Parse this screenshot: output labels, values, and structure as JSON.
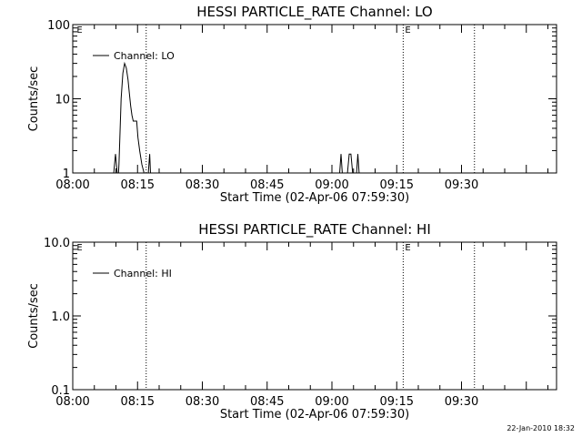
{
  "stamp": "22-Jan-2010 18:32",
  "chart_data": [
    {
      "type": "line",
      "title": "HESSI PARTICLE_RATE Channel: LO",
      "xlabel": "Start Time (02-Apr-06 07:59:30)",
      "ylabel": "Counts/sec",
      "y_scale": "log",
      "ylim": [
        1,
        100
      ],
      "xlim": [
        0,
        112
      ],
      "y_ticks": [
        {
          "value": 1,
          "label": "1"
        },
        {
          "value": 10,
          "label": "10"
        },
        {
          "value": 100,
          "label": "100"
        }
      ],
      "x_ticks": [
        {
          "value": 0,
          "label": "08:00"
        },
        {
          "value": 15,
          "label": "08:15"
        },
        {
          "value": 30,
          "label": "08:30"
        },
        {
          "value": 45,
          "label": "08:45"
        },
        {
          "value": 60,
          "label": "09:00"
        },
        {
          "value": 75,
          "label": "09:15"
        },
        {
          "value": 90,
          "label": "09:30"
        }
      ],
      "legend": {
        "position": "top-left",
        "entries": [
          "Channel: LO"
        ]
      },
      "markers": [
        {
          "x": 0.5,
          "label": "E"
        },
        {
          "x": 17,
          "label": ""
        },
        {
          "x": 76.5,
          "label": "E"
        },
        {
          "x": 93,
          "label": ""
        }
      ],
      "series": [
        {
          "name": "Channel: LO",
          "x": [
            9.5,
            9.9,
            10.3,
            10.6,
            10.7,
            10.9,
            11.2,
            11.6,
            12.0,
            12.4,
            12.8,
            13.1,
            13.4,
            13.7,
            14.0,
            14.3,
            14.8,
            15.1,
            15.5,
            16.0,
            16.5
          ],
          "y": [
            1,
            1.8,
            1,
            1,
            1.3,
            3,
            10,
            22,
            30,
            26,
            18,
            12,
            8,
            6,
            5,
            5,
            5,
            3,
            2,
            1.3,
            1
          ]
        },
        {
          "name": "",
          "x": [
            17.5,
            17.8,
            18.0
          ],
          "y": [
            1,
            1.8,
            1
          ]
        },
        {
          "name": "",
          "x": [
            61.8,
            62.1,
            62.4
          ],
          "y": [
            1,
            1.8,
            1
          ]
        },
        {
          "name": "",
          "x": [
            63.6,
            64.0,
            64.4,
            64.8
          ],
          "y": [
            1,
            1.8,
            1.8,
            1
          ]
        },
        {
          "name": "",
          "x": [
            65.7,
            66.0,
            66.3
          ],
          "y": [
            1,
            1.8,
            1
          ]
        }
      ]
    },
    {
      "type": "line",
      "title": "HESSI PARTICLE_RATE Channel: HI",
      "xlabel": "Start Time (02-Apr-06 07:59:30)",
      "ylabel": "Counts/sec",
      "y_scale": "log",
      "ylim": [
        0.1,
        10
      ],
      "xlim": [
        0,
        112
      ],
      "y_ticks": [
        {
          "value": 0.1,
          "label": "0.1"
        },
        {
          "value": 1,
          "label": "1.0"
        },
        {
          "value": 10,
          "label": "10.0"
        }
      ],
      "x_ticks": [
        {
          "value": 0,
          "label": "08:00"
        },
        {
          "value": 15,
          "label": "08:15"
        },
        {
          "value": 30,
          "label": "08:30"
        },
        {
          "value": 45,
          "label": "08:45"
        },
        {
          "value": 60,
          "label": "09:00"
        },
        {
          "value": 75,
          "label": "09:15"
        },
        {
          "value": 90,
          "label": "09:30"
        }
      ],
      "legend": {
        "position": "top-left",
        "entries": [
          "Channel: HI"
        ]
      },
      "markers": [
        {
          "x": 0.5,
          "label": "E"
        },
        {
          "x": 17,
          "label": ""
        },
        {
          "x": 76.5,
          "label": "E"
        },
        {
          "x": 93,
          "label": ""
        }
      ],
      "series": []
    }
  ]
}
